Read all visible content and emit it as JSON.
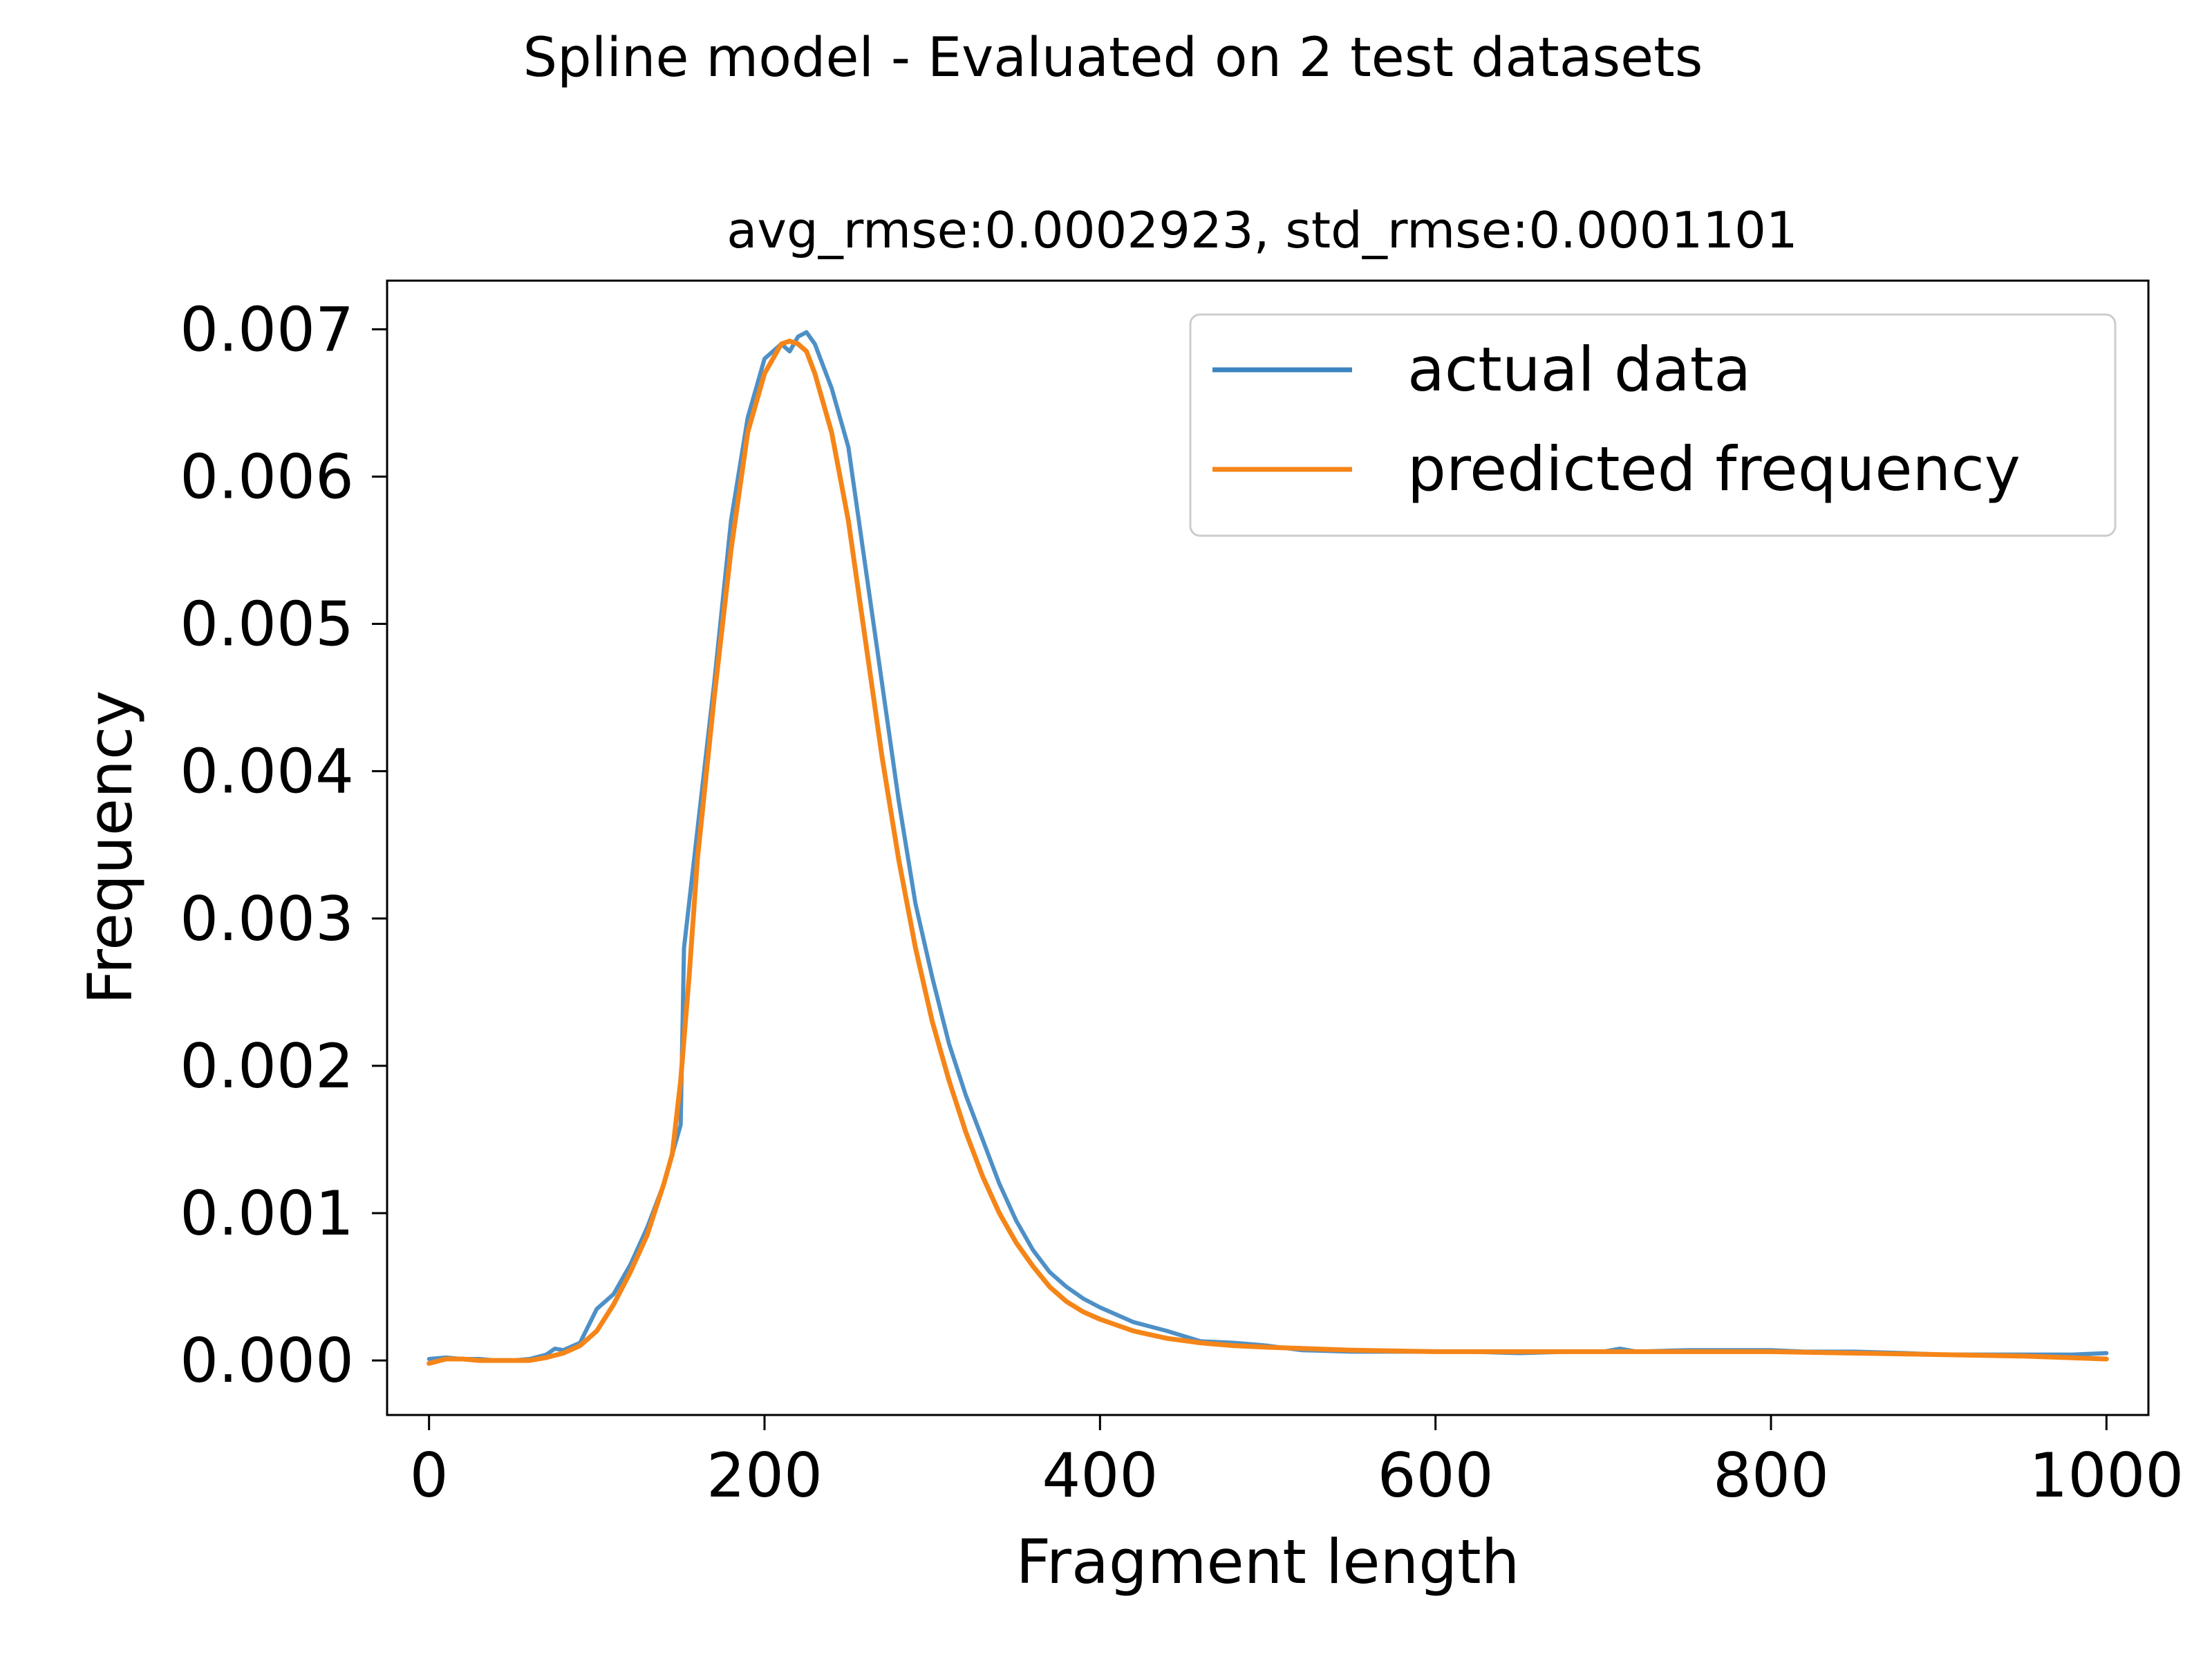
{
  "figure": {
    "suptitle": "Spline model - Evaluated on 2 test datasets",
    "title": "avg_rmse:0.0002923, std_rmse:0.0001101"
  },
  "chart_data": {
    "type": "line",
    "xlabel": "Fragment length",
    "ylabel": "Frequency",
    "xlim": [
      -25,
      1025
    ],
    "ylim": [
      -0.00037,
      0.00733
    ],
    "x_ticks": [
      0,
      200,
      400,
      600,
      800,
      1000
    ],
    "x_tick_labels": [
      "0",
      "200",
      "400",
      "600",
      "800",
      "1000"
    ],
    "y_ticks": [
      0.0,
      0.001,
      0.002,
      0.003,
      0.004,
      0.005,
      0.006,
      0.007
    ],
    "y_tick_labels": [
      "0.000",
      "0.001",
      "0.002",
      "0.003",
      "0.004",
      "0.005",
      "0.006",
      "0.007"
    ],
    "grid": false,
    "legend_position": "upper right",
    "series": [
      {
        "name": "actual data",
        "color": "#3b84c0",
        "x": [
          0,
          10,
          20,
          30,
          40,
          50,
          60,
          70,
          75,
          80,
          90,
          100,
          105,
          110,
          120,
          130,
          140,
          145,
          150,
          152,
          155,
          160,
          170,
          180,
          190,
          200,
          210,
          215,
          220,
          225,
          230,
          240,
          250,
          260,
          270,
          280,
          290,
          300,
          310,
          320,
          330,
          340,
          350,
          360,
          370,
          380,
          390,
          400,
          420,
          440,
          460,
          480,
          500,
          520,
          550,
          580,
          600,
          620,
          650,
          680,
          700,
          710,
          720,
          750,
          780,
          800,
          820,
          850,
          880,
          900,
          920,
          950,
          980,
          1000
        ],
        "y": [
          1e-05,
          2e-05,
          1e-05,
          1e-05,
          0.0,
          0.0,
          1e-05,
          4e-05,
          8e-05,
          7e-05,
          0.00012,
          0.00035,
          0.0004,
          0.00045,
          0.00065,
          0.0009,
          0.0012,
          0.0014,
          0.0016,
          0.0028,
          0.0031,
          0.0036,
          0.0046,
          0.0057,
          0.0064,
          0.0068,
          0.0069,
          0.00685,
          0.00695,
          0.00698,
          0.0069,
          0.0066,
          0.0062,
          0.0054,
          0.0046,
          0.0038,
          0.0031,
          0.0026,
          0.00215,
          0.0018,
          0.0015,
          0.0012,
          0.00095,
          0.00075,
          0.0006,
          0.0005,
          0.00042,
          0.00036,
          0.00026,
          0.0002,
          0.00013,
          0.00012,
          0.0001,
          7e-05,
          6e-05,
          6e-05,
          6e-05,
          6e-05,
          5e-05,
          6e-05,
          6e-05,
          8e-05,
          6e-05,
          7e-05,
          7e-05,
          7e-05,
          6e-05,
          6e-05,
          5e-05,
          4e-05,
          4e-05,
          4e-05,
          4e-05,
          5e-05
        ]
      },
      {
        "name": "predicted frequency",
        "color": "#f58518",
        "x": [
          0,
          10,
          20,
          30,
          40,
          50,
          60,
          70,
          80,
          90,
          100,
          110,
          120,
          130,
          140,
          145,
          150,
          155,
          160,
          170,
          180,
          190,
          200,
          210,
          215,
          220,
          225,
          230,
          240,
          250,
          260,
          270,
          280,
          290,
          300,
          310,
          320,
          330,
          340,
          350,
          360,
          370,
          380,
          390,
          400,
          420,
          440,
          460,
          480,
          500,
          550,
          600,
          650,
          700,
          750,
          800,
          850,
          900,
          950,
          1000
        ],
        "y": [
          -2e-05,
          1e-05,
          1e-05,
          0.0,
          0.0,
          0.0,
          0.0,
          2e-05,
          5e-05,
          0.0001,
          0.0002,
          0.00038,
          0.0006,
          0.00085,
          0.0012,
          0.0014,
          0.0019,
          0.0026,
          0.0034,
          0.0045,
          0.0055,
          0.0063,
          0.0067,
          0.0069,
          0.00692,
          0.0069,
          0.00685,
          0.0067,
          0.0063,
          0.0057,
          0.0049,
          0.0041,
          0.0034,
          0.0028,
          0.0023,
          0.0019,
          0.00155,
          0.00125,
          0.001,
          0.0008,
          0.00064,
          0.0005,
          0.0004,
          0.00033,
          0.00028,
          0.0002,
          0.00015,
          0.00012,
          0.0001,
          9e-05,
          7e-05,
          6e-05,
          6e-05,
          6e-05,
          6e-05,
          6e-05,
          5e-05,
          4e-05,
          3e-05,
          1e-05
        ]
      }
    ]
  }
}
